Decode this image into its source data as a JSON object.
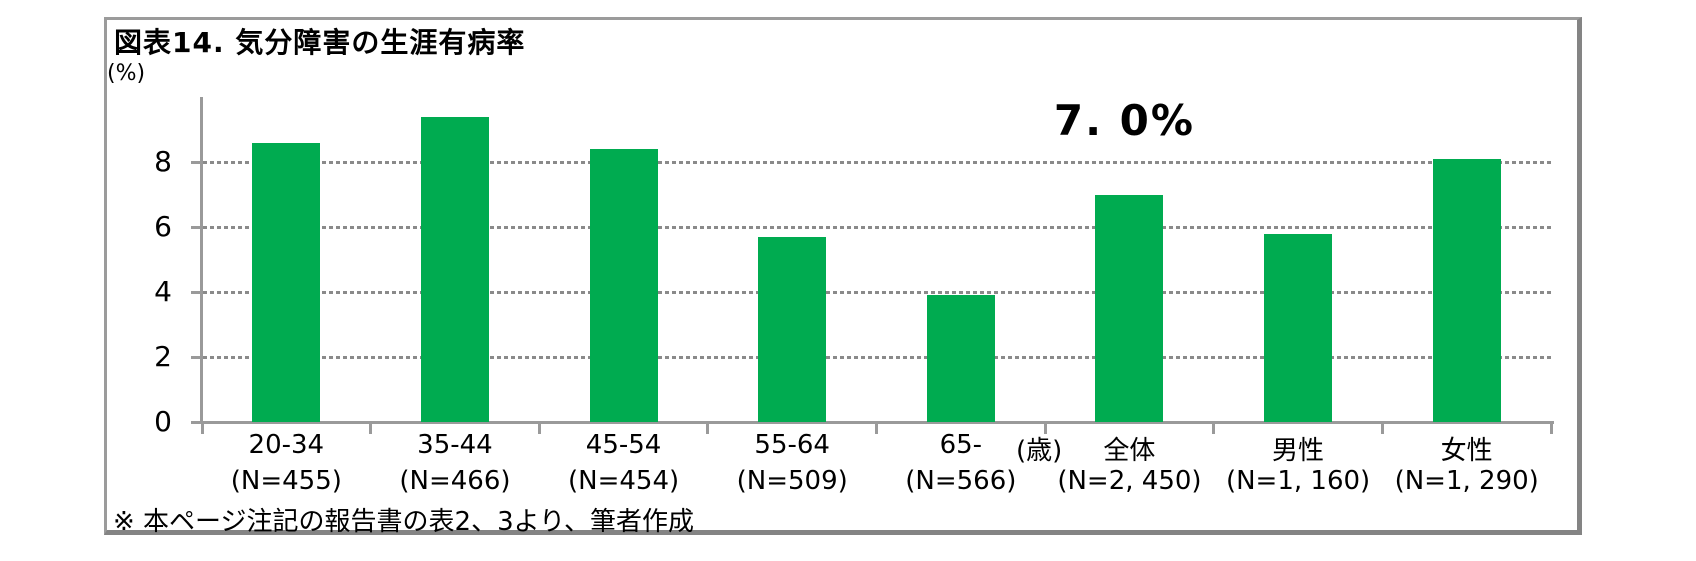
{
  "chart_data": {
    "type": "bar",
    "title": "図表14. 気分障害の生涯有病率",
    "ylabel": "(%)",
    "xlabel": "",
    "x_unit_label": "(歳)",
    "categories": [
      "20-34",
      "35-44",
      "45-54",
      "55-64",
      "65-",
      "全体",
      "男性",
      "女性"
    ],
    "n_labels": [
      "(N=455)",
      "(N=466)",
      "(N=454)",
      "(N=509)",
      "(N=566)",
      "(N=2, 450)",
      "(N=1, 160)",
      "(N=1, 290)"
    ],
    "values": [
      8.6,
      9.4,
      8.4,
      5.7,
      3.9,
      7.0,
      5.8,
      8.1
    ],
    "yticks": [
      0,
      2,
      4,
      6,
      8
    ],
    "ylim": [
      0,
      10
    ],
    "grid": "horizontal dotted at 2,4,6,8",
    "legend": "none",
    "annotation": {
      "text": "7. 0%",
      "above_category": "全体",
      "above_category_index": 5
    },
    "bar_color": "#00AB50",
    "axis_color": "#9a9a9a",
    "footnote": "※ 本ページ注記の報告書の表2、3より、筆者作成"
  }
}
